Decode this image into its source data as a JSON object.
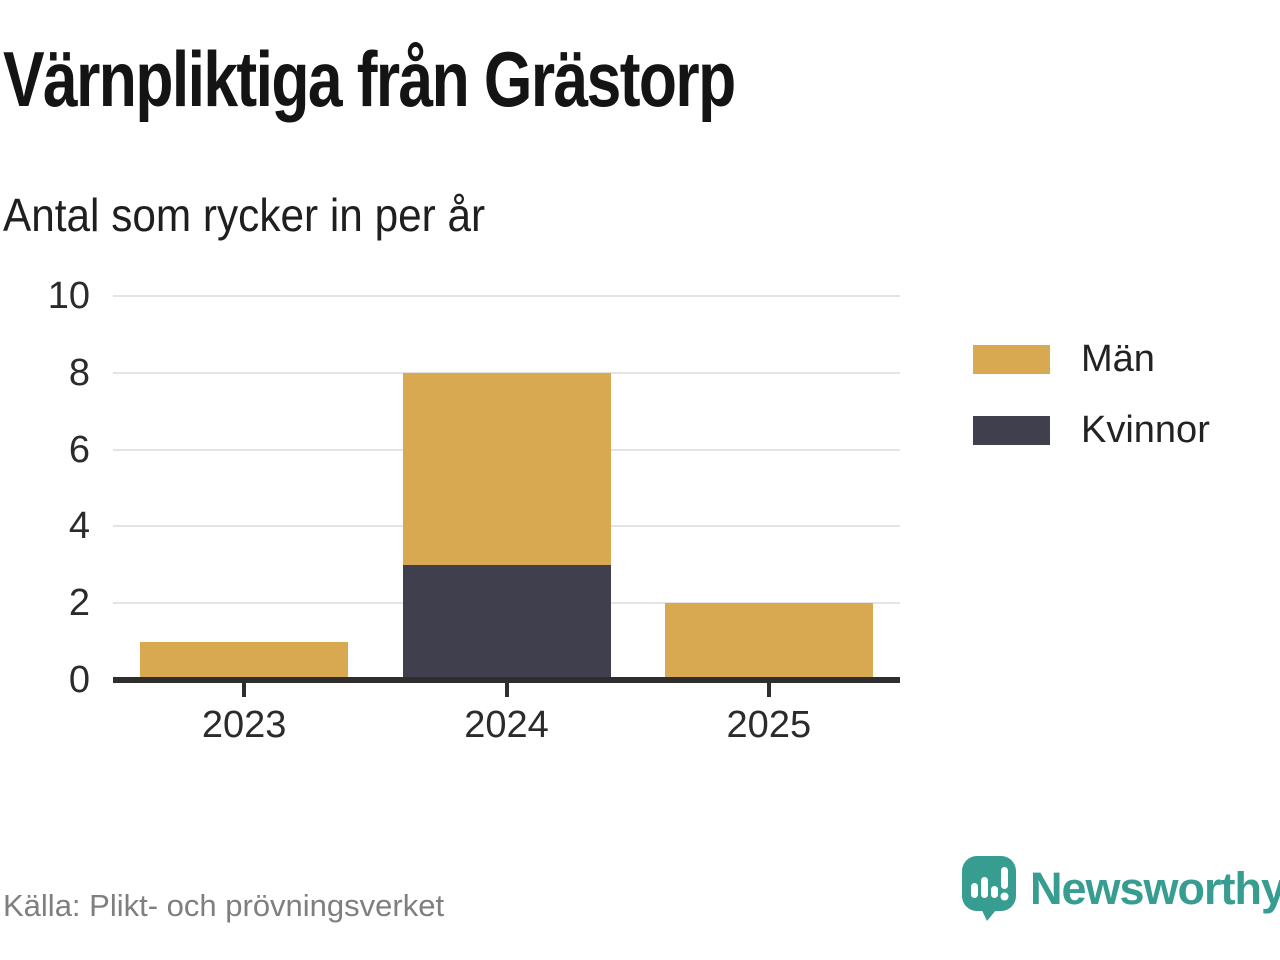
{
  "title": "Värnpliktiga från Grästorp",
  "subtitle": "Antal som rycker in per år",
  "source": "Källa: Plikt- och prövningsverket",
  "brand": {
    "name": "Newsworthy",
    "icon": "chart-speech-bubble-icon",
    "color": "#379d91"
  },
  "colors": {
    "men": "#d9a951",
    "women": "#403f4e",
    "axis": "#2e2e2e",
    "gridline": "#e4e4e4",
    "text": "#2b2b2b",
    "source_text": "#7f7f7f"
  },
  "chart_data": {
    "type": "bar",
    "stacked": true,
    "title": "Värnpliktiga från Grästorp",
    "subtitle": "Antal som rycker in per år",
    "categories": [
      "2023",
      "2024",
      "2025"
    ],
    "series": [
      {
        "name": "Män",
        "color": "#d9a951",
        "values": [
          1,
          5,
          2
        ]
      },
      {
        "name": "Kvinnor",
        "color": "#403f4e",
        "values": [
          0,
          3,
          0
        ]
      }
    ],
    "stack_order_bottom_to_top": [
      "Kvinnor",
      "Män"
    ],
    "totals": [
      1,
      8,
      2
    ],
    "xlabel": "",
    "ylabel": "",
    "ylim": [
      0,
      10
    ],
    "yticks": [
      0,
      2,
      4,
      6,
      8,
      10
    ],
    "grid": true,
    "legend_position": "right"
  }
}
